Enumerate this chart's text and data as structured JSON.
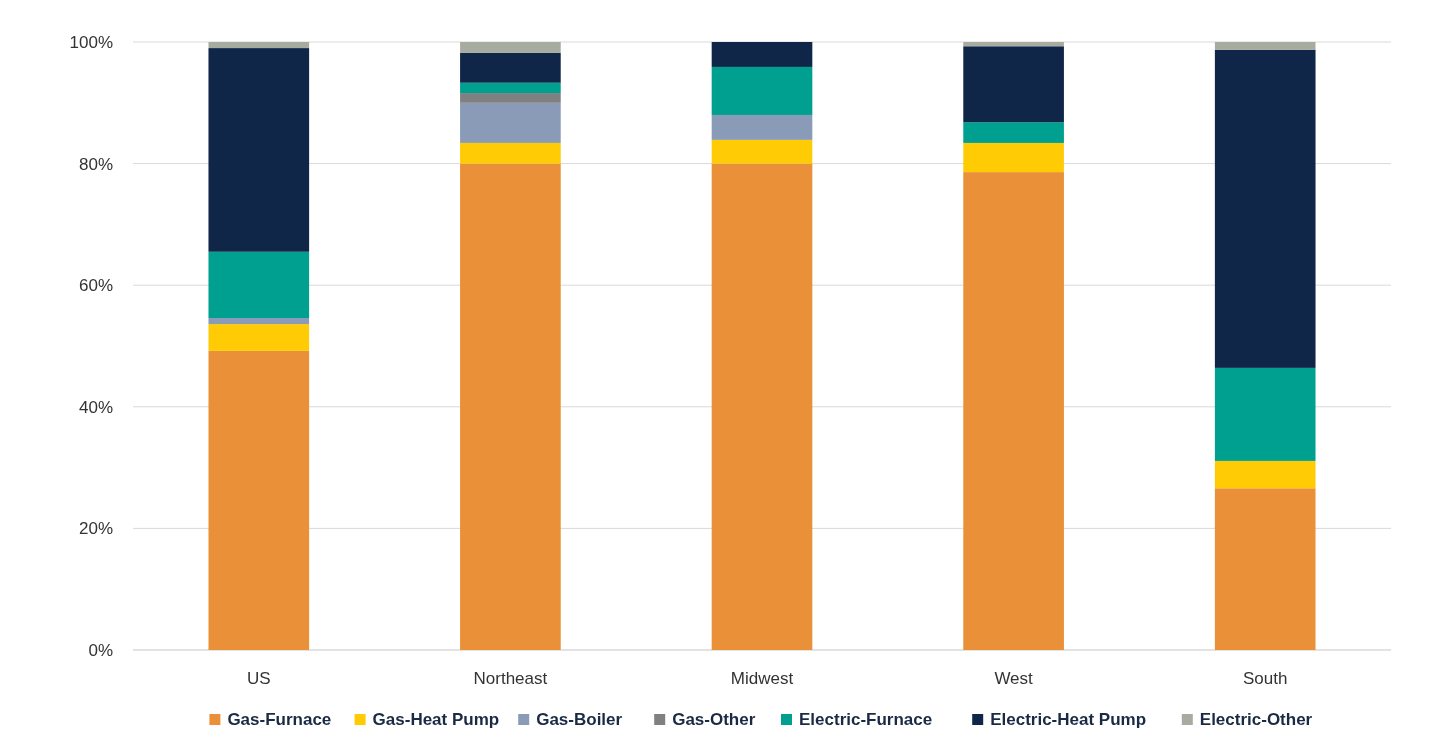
{
  "chart_data": {
    "type": "bar",
    "stacked": true,
    "categories": [
      "US",
      "Northeast",
      "Midwest",
      "West",
      "South"
    ],
    "series": [
      {
        "name": "Gas-Furnace",
        "color": "#ea9038",
        "values": [
          49.2,
          80.0,
          80.0,
          78.6,
          26.6
        ]
      },
      {
        "name": "Gas-Heat Pump",
        "color": "#ffcb05",
        "values": [
          4.4,
          3.4,
          3.9,
          4.8,
          4.5
        ]
      },
      {
        "name": "Gas-Boiler",
        "color": "#8a9bb8",
        "values": [
          1.0,
          6.6,
          4.1,
          0,
          0
        ]
      },
      {
        "name": "Gas-Other",
        "color": "#808080",
        "values": [
          0,
          1.6,
          0,
          0,
          0
        ]
      },
      {
        "name": "Electric-Furnace",
        "color": "#00a090",
        "values": [
          10.9,
          1.7,
          7.9,
          3.4,
          15.3
        ]
      },
      {
        "name": "Electric-Heat Pump",
        "color": "#0f2648",
        "values": [
          33.5,
          4.9,
          4.1,
          12.5,
          52.3
        ]
      },
      {
        "name": "Electric-Other",
        "color": "#a8aba0",
        "values": [
          1.0,
          1.8,
          0,
          0.7,
          1.3
        ]
      }
    ],
    "ylim": [
      0,
      100
    ],
    "yticks": [
      {
        "value": 0,
        "label": "0%"
      },
      {
        "value": 20,
        "label": "20%"
      },
      {
        "value": 40,
        "label": "40%"
      },
      {
        "value": 60,
        "label": "60%"
      },
      {
        "value": 80,
        "label": "80%"
      },
      {
        "value": 100,
        "label": "100%"
      }
    ],
    "grid": "y",
    "legend": "bottom"
  }
}
